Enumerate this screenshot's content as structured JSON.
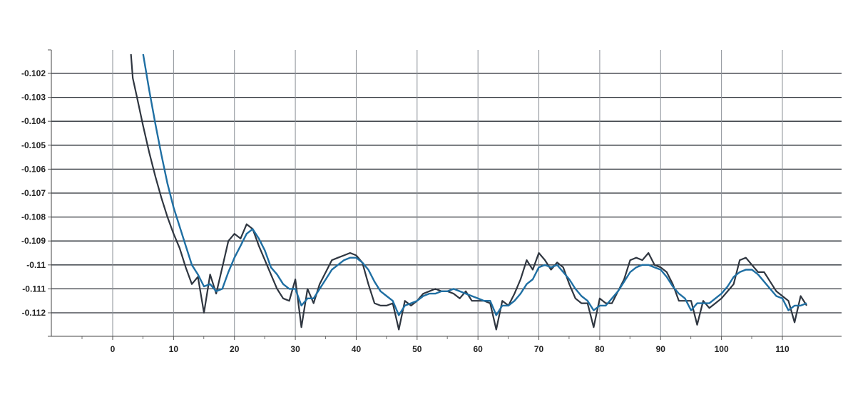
{
  "chart_data": {
    "type": "line",
    "title": "",
    "xlabel": "",
    "ylabel": "",
    "xlim": [
      -10,
      118
    ],
    "ylim": [
      -0.1129,
      -0.1209
    ],
    "ylim_note": "",
    "x_ticks": [
      0,
      10,
      20,
      30,
      40,
      50,
      60,
      70,
      80,
      90,
      100,
      110
    ],
    "y_ticks": [
      -0.102,
      -0.103,
      -0.104,
      -0.105,
      -0.106,
      -0.107,
      -0.108,
      -0.109,
      -0.11,
      -0.111,
      -0.112
    ],
    "grid": true,
    "legend": "none",
    "series": [
      {
        "color": "#2f3640",
        "x": [
          3,
          3.3,
          4,
          5,
          6,
          7,
          8,
          9,
          10,
          11,
          12,
          13,
          14,
          15,
          16,
          17,
          18,
          19,
          20,
          21,
          22,
          23,
          24,
          25,
          26,
          27,
          28,
          29,
          30,
          31,
          32,
          33,
          34,
          35,
          36,
          37,
          38,
          39,
          40,
          41,
          42,
          43,
          44,
          45,
          46,
          47,
          48,
          49,
          50,
          51,
          52,
          53,
          54,
          55,
          56,
          57,
          58,
          59,
          60,
          61,
          62,
          63,
          64,
          65,
          66,
          67,
          68,
          69,
          70,
          71,
          72,
          73,
          74,
          75,
          76,
          77,
          78,
          79,
          80,
          81,
          82,
          83,
          84,
          85,
          86,
          87,
          88,
          89,
          90,
          91,
          92,
          93,
          94,
          95,
          96,
          97,
          98,
          99,
          100,
          101,
          102,
          103,
          104,
          105,
          106,
          107,
          108,
          109,
          110,
          111,
          112,
          113,
          114
        ],
        "y": [
          -0.1012,
          -0.1022,
          -0.103,
          -0.1042,
          -0.1053,
          -0.1063,
          -0.1072,
          -0.108,
          -0.1087,
          -0.1093,
          -0.1101,
          -0.1108,
          -0.1105,
          -0.112,
          -0.1104,
          -0.1112,
          -0.1101,
          -0.109,
          -0.1087,
          -0.1089,
          -0.1083,
          -0.1085,
          -0.1092,
          -0.1098,
          -0.1104,
          -0.111,
          -0.1114,
          -0.1115,
          -0.1106,
          -0.1126,
          -0.111,
          -0.1116,
          -0.1108,
          -0.1103,
          -0.1098,
          -0.1097,
          -0.1096,
          -0.1095,
          -0.1096,
          -0.1099,
          -0.1108,
          -0.1116,
          -0.1117,
          -0.1117,
          -0.1116,
          -0.1127,
          -0.1115,
          -0.1117,
          -0.1115,
          -0.1112,
          -0.1111,
          -0.111,
          -0.1111,
          -0.1111,
          -0.1112,
          -0.1114,
          -0.1111,
          -0.1115,
          -0.1115,
          -0.1115,
          -0.1116,
          -0.1127,
          -0.1115,
          -0.1117,
          -0.1112,
          -0.1106,
          -0.1098,
          -0.1102,
          -0.1095,
          -0.1098,
          -0.1102,
          -0.1099,
          -0.1101,
          -0.1108,
          -0.1114,
          -0.1116,
          -0.1116,
          -0.1126,
          -0.1114,
          -0.1116,
          -0.1116,
          -0.1111,
          -0.1106,
          -0.1098,
          -0.1097,
          -0.1098,
          -0.1095,
          -0.11,
          -0.1101,
          -0.1103,
          -0.1108,
          -0.1115,
          -0.1115,
          -0.1115,
          -0.1125,
          -0.1115,
          -0.1118,
          -0.1116,
          -0.1114,
          -0.1111,
          -0.1108,
          -0.1098,
          -0.1097,
          -0.11,
          -0.1103,
          -0.1103,
          -0.1107,
          -0.1111,
          -0.1113,
          -0.1115,
          -0.1124,
          -0.1113,
          -0.1117
        ]
      },
      {
        "color": "#1f6fa3",
        "x": [
          5,
          6,
          7,
          8,
          9,
          10,
          11,
          12,
          13,
          14,
          15,
          16,
          17,
          18,
          19,
          20,
          21,
          22,
          23,
          24,
          25,
          26,
          27,
          28,
          29,
          30,
          31,
          32,
          33,
          34,
          35,
          36,
          37,
          38,
          39,
          40,
          41,
          42,
          43,
          44,
          45,
          46,
          47,
          48,
          49,
          50,
          51,
          52,
          53,
          54,
          55,
          56,
          57,
          58,
          59,
          60,
          61,
          62,
          63,
          64,
          65,
          66,
          67,
          68,
          69,
          70,
          71,
          72,
          73,
          74,
          75,
          76,
          77,
          78,
          79,
          80,
          81,
          82,
          83,
          84,
          85,
          86,
          87,
          88,
          89,
          90,
          91,
          92,
          93,
          94,
          95,
          96,
          97,
          98,
          99,
          100,
          101,
          102,
          103,
          104,
          105,
          106,
          107,
          108,
          109,
          110,
          111,
          112,
          113,
          114
        ],
        "y": [
          -0.1012,
          -0.1027,
          -0.1041,
          -0.1054,
          -0.1066,
          -0.1076,
          -0.1084,
          -0.1092,
          -0.11,
          -0.1104,
          -0.1109,
          -0.1108,
          -0.1111,
          -0.111,
          -0.1103,
          -0.1097,
          -0.1092,
          -0.1087,
          -0.1085,
          -0.1089,
          -0.1094,
          -0.1101,
          -0.1104,
          -0.1108,
          -0.111,
          -0.111,
          -0.1117,
          -0.1114,
          -0.1114,
          -0.111,
          -0.1106,
          -0.1102,
          -0.11,
          -0.1098,
          -0.1097,
          -0.1097,
          -0.1099,
          -0.1102,
          -0.1107,
          -0.1111,
          -0.1113,
          -0.1115,
          -0.1121,
          -0.1117,
          -0.1116,
          -0.1115,
          -0.1113,
          -0.1112,
          -0.1112,
          -0.1111,
          -0.1111,
          -0.111,
          -0.1111,
          -0.1112,
          -0.1113,
          -0.1114,
          -0.1115,
          -0.1115,
          -0.1121,
          -0.1117,
          -0.1117,
          -0.1115,
          -0.1112,
          -0.1108,
          -0.1106,
          -0.1101,
          -0.11,
          -0.1101,
          -0.11,
          -0.1103,
          -0.1106,
          -0.111,
          -0.1113,
          -0.1115,
          -0.1119,
          -0.1117,
          -0.1117,
          -0.1114,
          -0.1111,
          -0.1107,
          -0.1103,
          -0.1101,
          -0.11,
          -0.11,
          -0.1101,
          -0.1102,
          -0.1105,
          -0.1109,
          -0.1112,
          -0.1114,
          -0.1119,
          -0.1116,
          -0.1116,
          -0.1116,
          -0.1114,
          -0.1112,
          -0.1109,
          -0.1105,
          -0.1103,
          -0.1102,
          -0.1102,
          -0.1104,
          -0.1107,
          -0.111,
          -0.1113,
          -0.1114,
          -0.1119,
          -0.1117,
          -0.1117,
          -0.1116
        ]
      }
    ]
  }
}
